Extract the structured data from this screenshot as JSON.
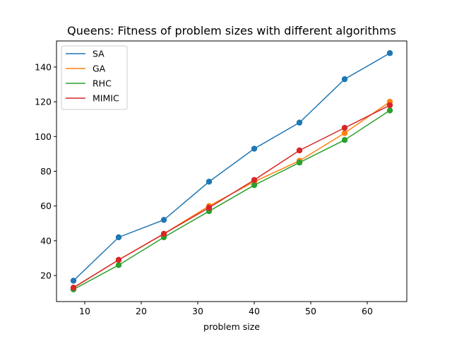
{
  "chart_data": {
    "type": "line",
    "title": "Queens: Fitness of problem sizes with different algorithms",
    "xlabel": "problem size",
    "ylabel": "",
    "x": [
      8,
      16,
      24,
      32,
      40,
      48,
      56,
      64
    ],
    "xlim": [
      5,
      67
    ],
    "ylim": [
      5,
      155
    ],
    "xticks": [
      10,
      20,
      30,
      40,
      50,
      60
    ],
    "yticks": [
      20,
      40,
      60,
      80,
      100,
      120,
      140
    ],
    "grid": false,
    "legend_position": "top-left",
    "series": [
      {
        "name": "SA",
        "color": "#1f77b4",
        "values": [
          17,
          42,
          52,
          74,
          93,
          108,
          133,
          148
        ]
      },
      {
        "name": "GA",
        "color": "#ff7f0e",
        "values": [
          13,
          29,
          44,
          60,
          74,
          86,
          102,
          120
        ]
      },
      {
        "name": "RHC",
        "color": "#2ca02c",
        "values": [
          12,
          26,
          42,
          57,
          72,
          85,
          98,
          115
        ]
      },
      {
        "name": "MIMIC",
        "color": "#d62728",
        "values": [
          13,
          29,
          44,
          59,
          75,
          92,
          105,
          118
        ]
      }
    ]
  }
}
